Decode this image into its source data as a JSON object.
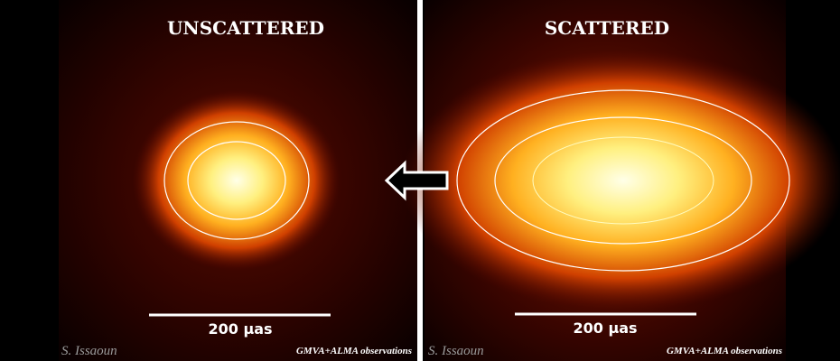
{
  "panels": [
    {
      "title": "UNSCATTERED",
      "scale_label": "200 µas",
      "credit": "S. Issaoun",
      "observation": "GMVA+ALMA observations"
    },
    {
      "title": "SCATTERED",
      "scale_label": "200 µas",
      "credit": "S. Issaoun",
      "observation": "GMVA+ALMA observations"
    }
  ]
}
